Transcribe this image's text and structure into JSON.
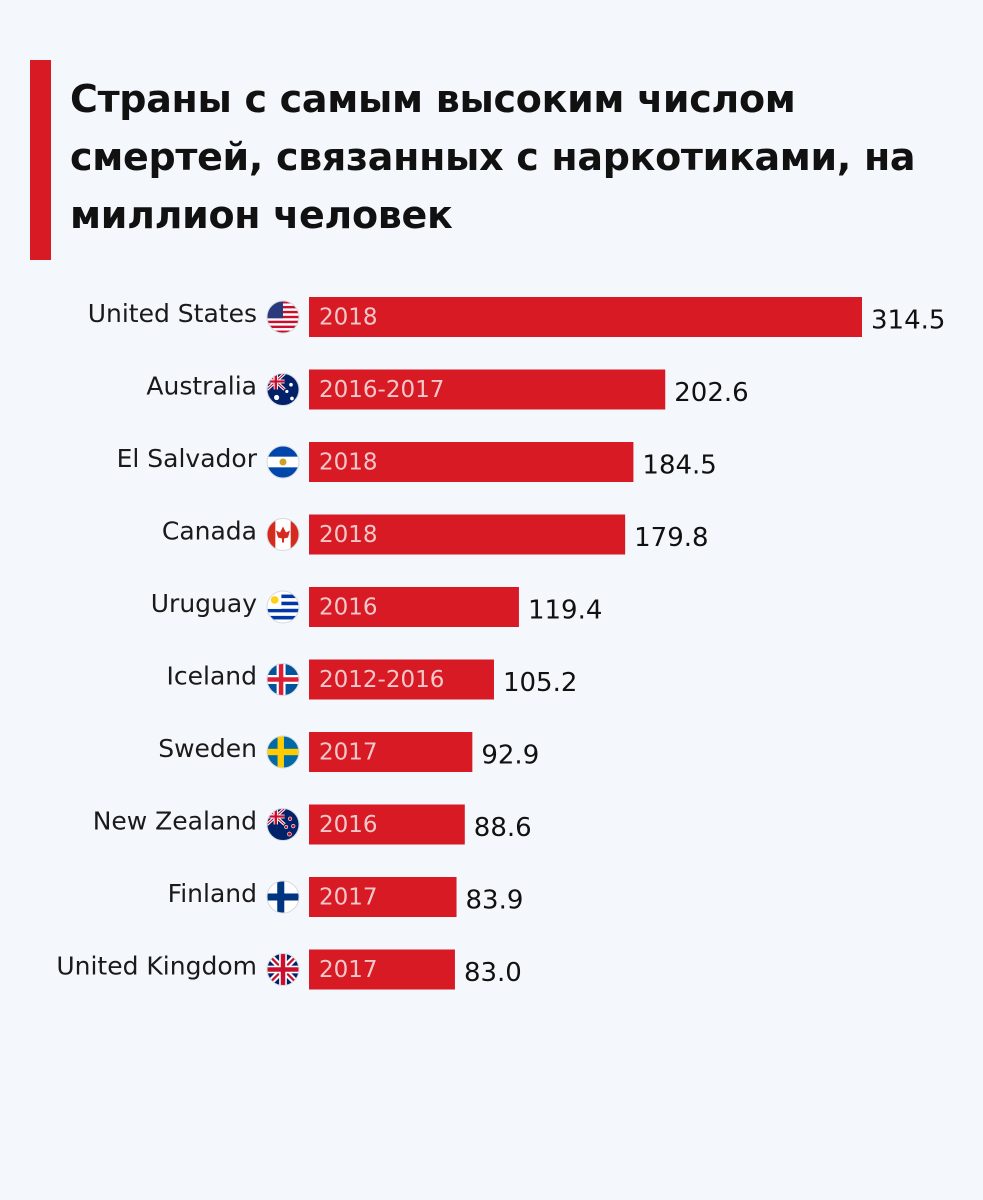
{
  "chart_data": {
    "type": "bar",
    "orientation": "horizontal",
    "title": "Страны с самым высоким числом смертей, связанных с наркотиками, на миллион человек",
    "categories": [
      "United States",
      "Australia",
      "El Salvador",
      "Canada",
      "Uruguay",
      "Iceland",
      "Sweden",
      "New Zealand",
      "Finland",
      "United Kingdom"
    ],
    "values": [
      314.5,
      202.6,
      184.5,
      179.8,
      119.4,
      105.2,
      92.9,
      88.6,
      83.9,
      83.0
    ],
    "value_labels": [
      "314.5",
      "202.6",
      "184.5",
      "179.8",
      "119.4",
      "105.2",
      "92.9",
      "88.6",
      "83.9",
      "83.0"
    ],
    "periods": [
      "2018",
      "2016-2017",
      "2018",
      "2018",
      "2016",
      "2012-2016",
      "2017",
      "2016",
      "2017",
      "2017"
    ],
    "flags": [
      "us-flag-icon",
      "australia-flag-icon",
      "el-salvador-flag-icon",
      "canada-flag-icon",
      "uruguay-flag-icon",
      "iceland-flag-icon",
      "sweden-flag-icon",
      "new-zealand-flag-icon",
      "finland-flag-icon",
      "uk-flag-icon"
    ],
    "xlim": [
      0,
      314.5
    ],
    "grid": false,
    "legend": "none"
  },
  "colors": {
    "bar": "#d71a23",
    "accent": "#d71a23",
    "background": "#f4f7fb"
  }
}
